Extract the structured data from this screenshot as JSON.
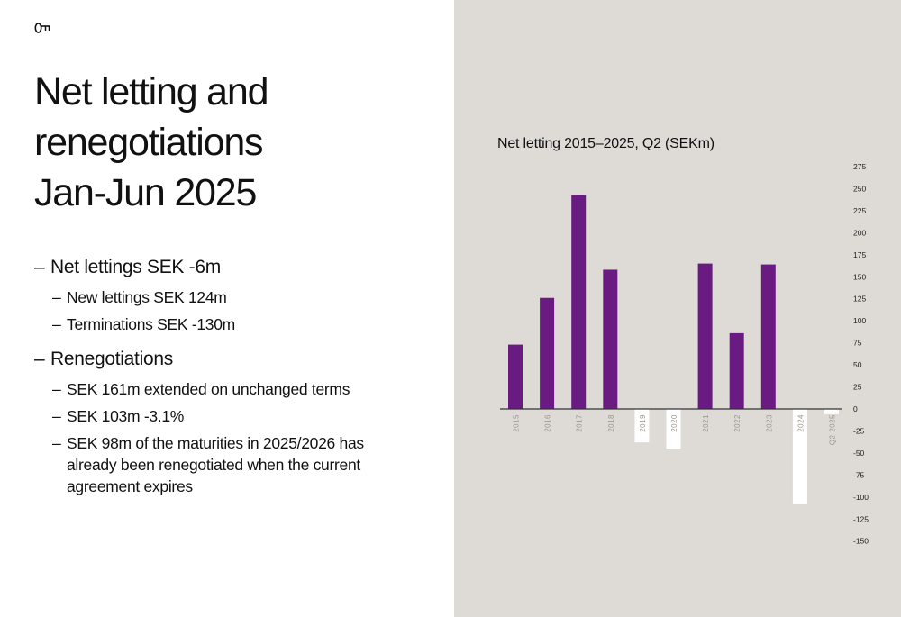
{
  "logo": {
    "icon": "key-icon"
  },
  "title_lines": [
    "Net letting and",
    "renegotiations",
    "Jan-Jun 2025"
  ],
  "bullets": {
    "net_lettings": "Net lettings SEK -6m",
    "net_lettings_sub": [
      "New lettings SEK 124m",
      "Terminations SEK -130m"
    ],
    "renegotiations": "Renegotiations",
    "renegotiations_sub": [
      "SEK 161m extended on unchanged terms",
      "SEK 103m -3.1%",
      "SEK 98m of the maturities in 2025/2026 has already been renegotiated when the current agreement expires"
    ],
    "dash": "–"
  },
  "colors": {
    "positive": "#6a1b82",
    "negative": "#ffffff",
    "panel": "#dedbd7",
    "axis": "#333333"
  },
  "chart_data": {
    "type": "bar",
    "title": "Net letting 2015–2025, Q2 (SEKm)",
    "categories": [
      "2015",
      "2016",
      "2017",
      "2018",
      "2019",
      "2020",
      "2021",
      "2022",
      "2023",
      "2024",
      "Q2 2025"
    ],
    "values": [
      73,
      126,
      243,
      158,
      -38,
      -45,
      165,
      86,
      164,
      -108,
      -6
    ],
    "xlabel": "",
    "ylabel": "",
    "ylim": [
      -150,
      275
    ],
    "yticks": [
      275,
      250,
      225,
      200,
      175,
      150,
      125,
      100,
      75,
      50,
      25,
      0,
      -25,
      -50,
      -75,
      -100,
      -125,
      -150
    ],
    "ytick_labels": [
      "275",
      "250",
      "225",
      "200",
      "175",
      "150",
      "125",
      "100",
      "75",
      "50",
      "25",
      "0",
      "-25",
      "-50",
      "-75",
      "-100",
      "-125",
      "-150"
    ],
    "y_axis_position": "right",
    "grid": false,
    "legend": "none"
  }
}
